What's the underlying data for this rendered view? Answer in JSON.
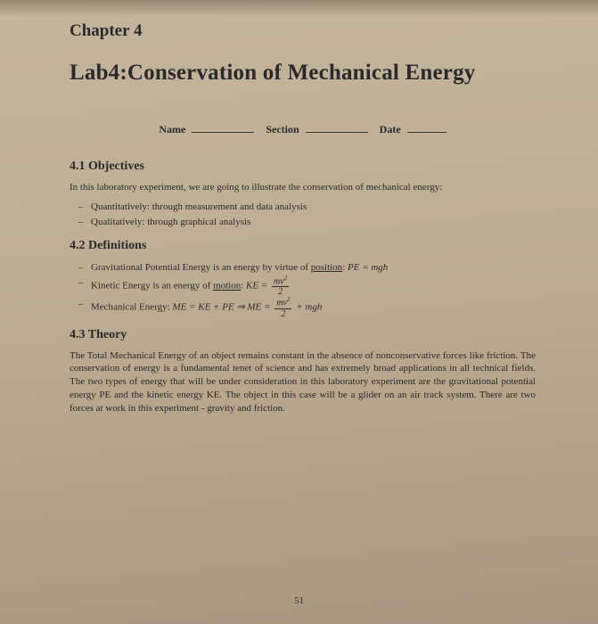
{
  "chapter": "Chapter 4",
  "labTitle": "Lab4:Conservation of Mechanical Energy",
  "header": {
    "name": "Name",
    "section": "Section",
    "date": "Date"
  },
  "sections": {
    "objectives": {
      "heading": "4.1   Objectives",
      "intro": "In this laboratory experiment, we are going to illustrate the conservation of mechanical energy:",
      "items": [
        "Quantitatively: through measurement and data analysis",
        "Qualitatively: through graphical analysis"
      ]
    },
    "definitions": {
      "heading": "4.2   Definitions",
      "items": {
        "pe_pre": "Gravitational Potential Energy is an energy by virtue of ",
        "pe_u": "position",
        "pe_post": ": ",
        "pe_eq": "PE = mgh",
        "ke_pre": "Kinetic Energy is an energy of ",
        "ke_u": "motion",
        "ke_post": ": ",
        "ke_lhs": "KE = ",
        "me_pre": "Mechanical Energy: ",
        "me_lhs": "ME = KE + PE ⇒ ME = ",
        "me_tail": " + mgh",
        "frac_num": "mv",
        "frac_den": "2"
      }
    },
    "theory": {
      "heading": "4.3   Theory",
      "para": "The Total Mechanical Energy of an object remains constant in the absence of nonconservative forces like friction. The conservation of energy is a fundamental tenet of science and has extremely broad applications in all technical fields. The two types of energy that will be under consideration in this laboratory experiment are the gravitational potential energy PE and the kinetic energy KE. The object in this case will be a glider on an air track system. There are two forces at work in this experiment - gravity and friction."
    }
  },
  "pageNumber": "51"
}
